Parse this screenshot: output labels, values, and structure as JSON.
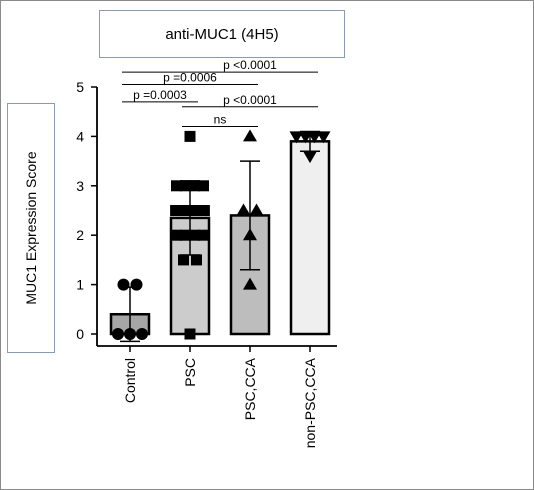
{
  "chart_data": {
    "type": "bar",
    "title": "anti-MUC1 (4H5)",
    "xlabel": "",
    "ylabel": "MUC1 Expression Score",
    "ylim": [
      0,
      5
    ],
    "yticks": [
      0,
      1,
      2,
      3,
      4,
      5
    ],
    "categories": [
      "Control",
      "PSC",
      "PSC,CCA",
      "non-PSC,CCA"
    ],
    "values": [
      0.4,
      2.35,
      2.4,
      3.9
    ],
    "error": [
      0.55,
      0.75,
      1.1,
      0.2
    ],
    "fills": [
      "#a6a6a6",
      "#cccccc",
      "#bdbdbd",
      "#efefef"
    ],
    "markers": [
      "circle",
      "square",
      "triangle-up",
      "triangle-down"
    ],
    "points": [
      [
        1,
        1,
        0,
        0,
        0
      ],
      [
        4,
        3,
        3,
        3,
        3,
        2.5,
        2.5,
        2.5,
        2.5,
        2.5,
        2,
        2,
        2,
        2,
        1.5,
        1.5,
        0
      ],
      [
        4,
        2.5,
        2.5,
        2,
        1
      ],
      [
        4,
        4,
        4,
        4,
        3.6
      ]
    ],
    "comparisons": [
      {
        "from": 0,
        "to": 3,
        "label": "p <0.0001",
        "y": 5.3
      },
      {
        "from": 0,
        "to": 2,
        "label": "p =0.0006",
        "y": 5.05
      },
      {
        "from": 0,
        "to": 1,
        "label": "p =0.0003",
        "y": 4.7
      },
      {
        "from": 1,
        "to": 3,
        "label": "p <0.0001",
        "y": 4.6
      },
      {
        "from": 1,
        "to": 2,
        "label": "ns",
        "y": 4.2
      }
    ]
  }
}
